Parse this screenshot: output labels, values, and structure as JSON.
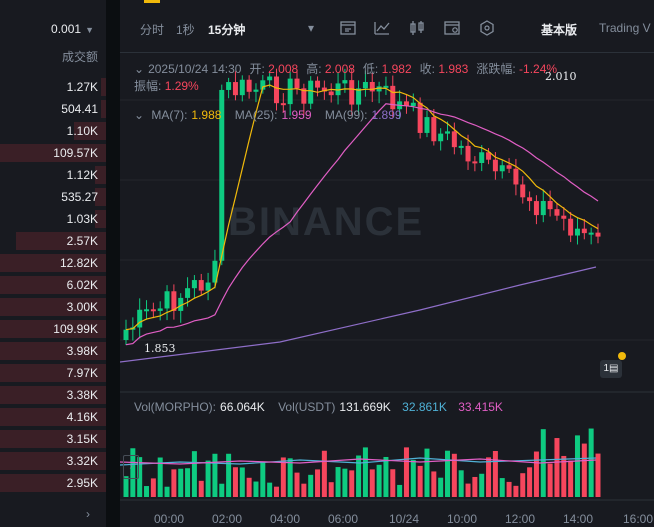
{
  "orderbook": {
    "precision": "0.001",
    "column_label": "成交额",
    "rows": [
      {
        "text": "1.27K",
        "depth": 0.05
      },
      {
        "text": "504.41",
        "depth": 0.05
      },
      {
        "text": "1.10K",
        "depth": 0.3
      },
      {
        "text": "109.57K",
        "depth": 1.0
      },
      {
        "text": "1.12K",
        "depth": 0.1
      },
      {
        "text": "535.27",
        "depth": 0.1
      },
      {
        "text": "1.03K",
        "depth": 0.1
      },
      {
        "text": "2.57K",
        "depth": 0.85
      },
      {
        "text": "12.82K",
        "depth": 1.0
      },
      {
        "text": "6.02K",
        "depth": 1.0
      },
      {
        "text": "3.00K",
        "depth": 1.0
      },
      {
        "text": "109.99K",
        "depth": 1.0
      },
      {
        "text": "3.98K",
        "depth": 1.0
      },
      {
        "text": "7.97K",
        "depth": 1.0
      },
      {
        "text": "3.38K",
        "depth": 1.0
      },
      {
        "text": "4.16K",
        "depth": 1.0
      },
      {
        "text": "3.15K",
        "depth": 1.0
      },
      {
        "text": "3.32K",
        "depth": 1.0
      },
      {
        "text": "2.95K",
        "depth": 1.0
      }
    ]
  },
  "toolbar": {
    "time_label": "分时",
    "one_sec": "1秒",
    "interval": "15分钟",
    "chevron": "▾",
    "mode": "基本版",
    "tradingview": "Trading V",
    "icons": [
      "indicator-icon",
      "line-chart-icon",
      "candle-type-icon",
      "settings-icon",
      "more-icon"
    ]
  },
  "info": {
    "date": "2025/10/24 14:30",
    "open_label": "开:",
    "open": "2.008",
    "high_label": "高:",
    "high": "2.008",
    "low_label": "低:",
    "low": "1.982",
    "close_label": "收:",
    "close": "1.983",
    "change_label": "涨跌幅:",
    "change": "-1.24%",
    "amp_label": "振幅:",
    "amp": "1.29%"
  },
  "ma": {
    "ma7_label": "MA(7):",
    "ma7": "1.988",
    "ma25_label": "MA(25):",
    "ma25": "1.959",
    "ma99_label": "MA(99):",
    "ma99": "1.899",
    "ma7_color": "#f0b90b",
    "ma25_color": "#e05ec4",
    "ma99_color": "#8e6ec8"
  },
  "volume": {
    "label": "Vol(MORPHO):",
    "value": "66.064K",
    "usdt_label": "Vol(USDT)",
    "usdt": "131.669K",
    "ma1": "32.861K",
    "ma2": "33.415K"
  },
  "price_marks": {
    "high": "2.010",
    "low": "1.853"
  },
  "badge_text": "1▤",
  "watermark_text": "BINANCE",
  "xaxis": [
    "00:00",
    "02:00",
    "04:00",
    "06:00",
    "10/24",
    "10:00",
    "12:00",
    "14:00",
    "16:00"
  ],
  "colors": {
    "up": "#0ecb81",
    "down": "#f6465d",
    "bg": "#181a20",
    "accent": "#f0b90b"
  }
}
